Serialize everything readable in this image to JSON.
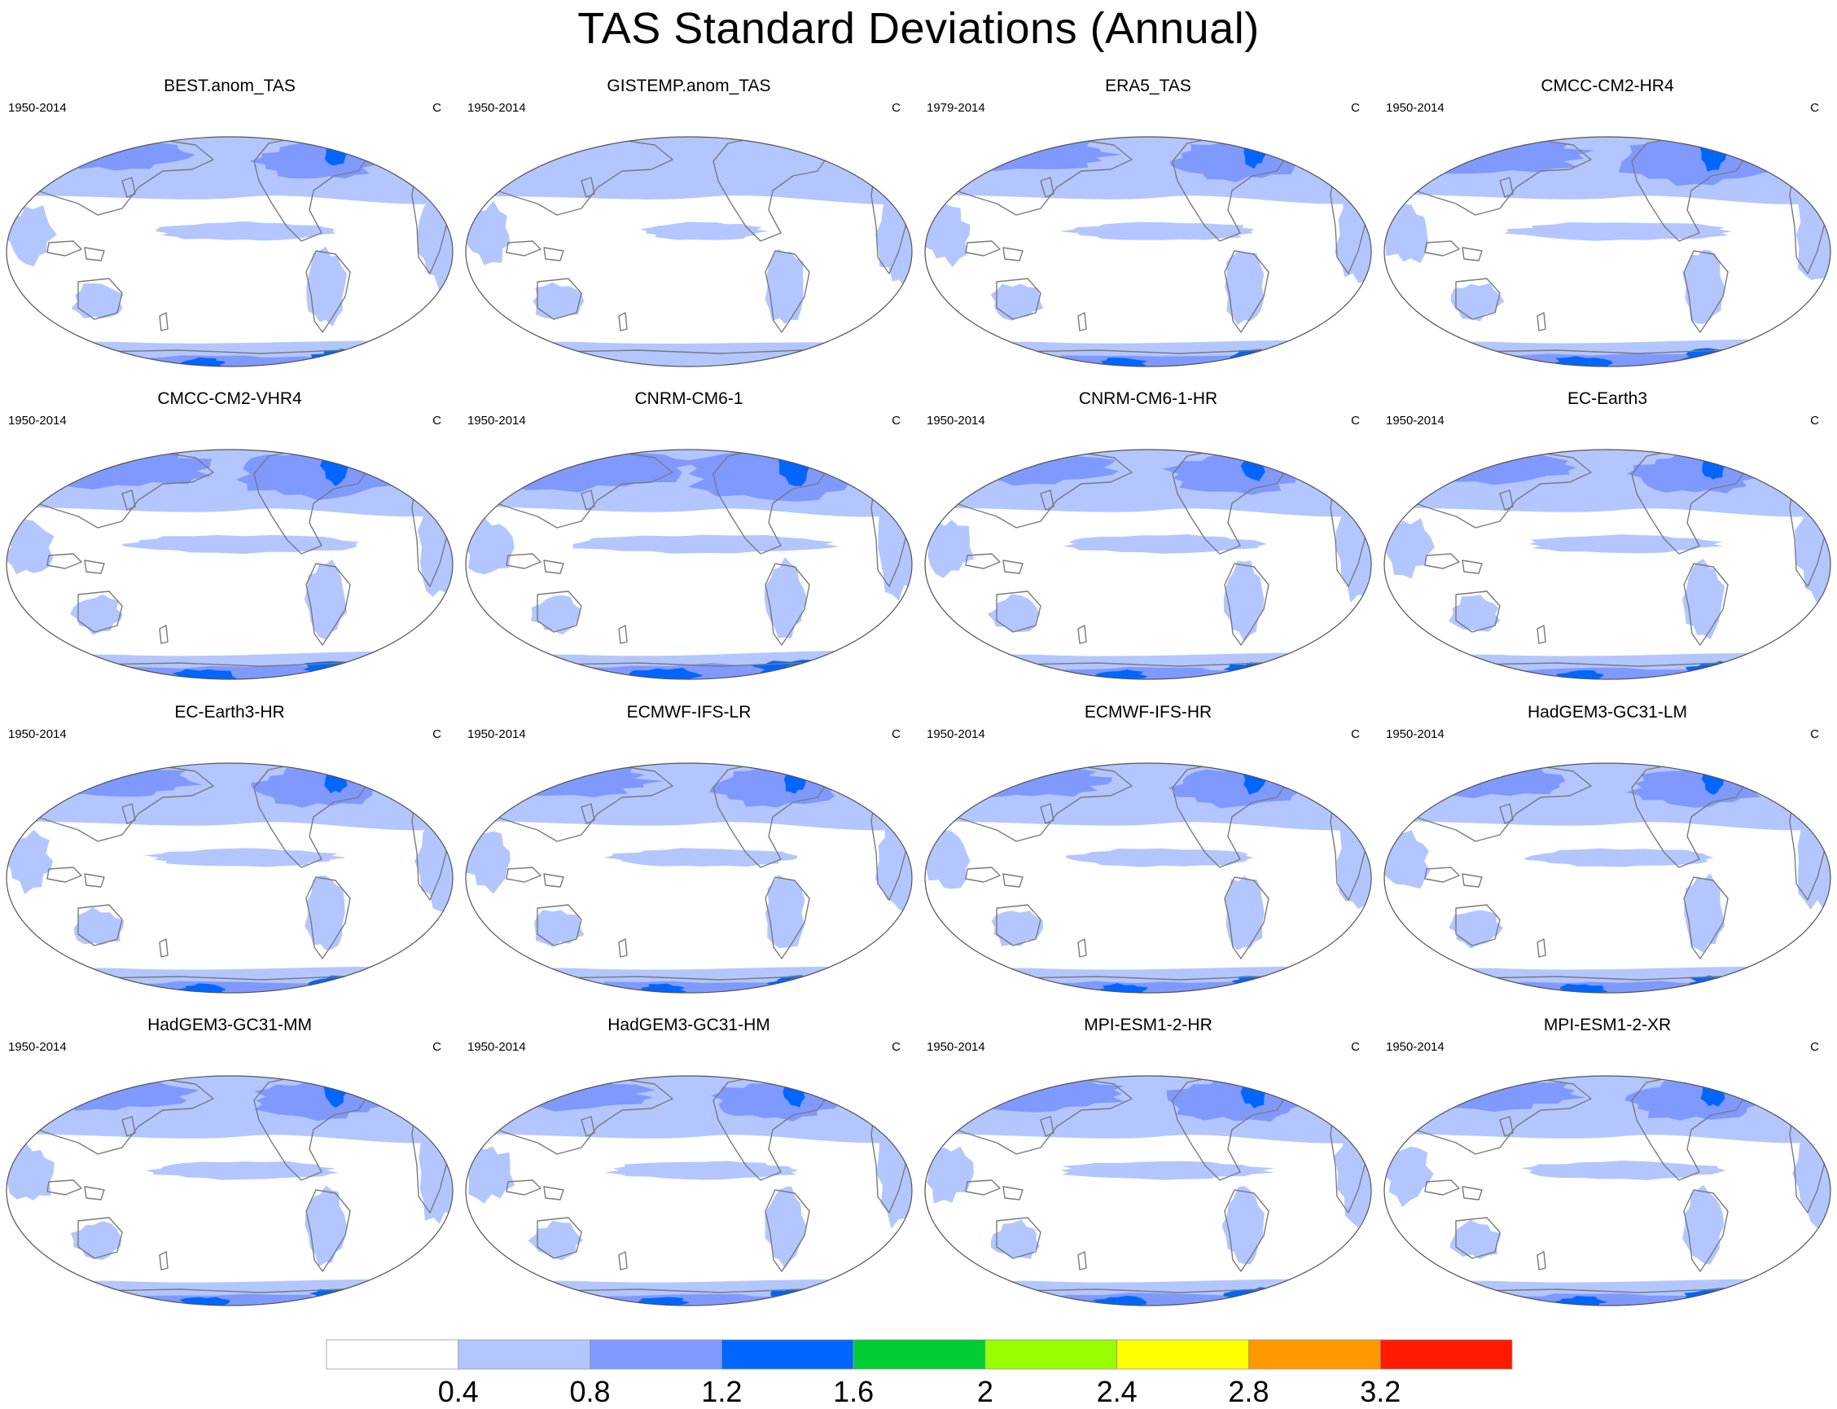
{
  "title": "TAS Standard Deviations (Annual)",
  "chart_data": {
    "type": "map",
    "grid": {
      "rows": 4,
      "cols": 4
    },
    "projection": "Robinson (Pacific-centered)",
    "units": "C",
    "panels": [
      {
        "name": "BEST.anom_TAS",
        "period": "1950-2014",
        "units": "C",
        "strength": 0.9
      },
      {
        "name": "GISTEMP.anom_TAS",
        "period": "1950-2014",
        "units": "C",
        "strength": 0.6
      },
      {
        "name": "ERA5_TAS",
        "period": "1979-2014",
        "units": "C",
        "strength": 0.95
      },
      {
        "name": "CMCC-CM2-HR4",
        "period": "1950-2014",
        "units": "C",
        "strength": 1.15
      },
      {
        "name": "CMCC-CM2-VHR4",
        "period": "1950-2014",
        "units": "C",
        "strength": 1.2
      },
      {
        "name": "CNRM-CM6-1",
        "period": "1950-2014",
        "units": "C",
        "strength": 1.35
      },
      {
        "name": "CNRM-CM6-1-HR",
        "period": "1950-2014",
        "units": "C",
        "strength": 1.0
      },
      {
        "name": "EC-Earth3",
        "period": "1950-2014",
        "units": "C",
        "strength": 0.95
      },
      {
        "name": "EC-Earth3-HR",
        "period": "1950-2014",
        "units": "C",
        "strength": 0.95
      },
      {
        "name": "ECMWF-IFS-LR",
        "period": "1950-2014",
        "units": "C",
        "strength": 0.95
      },
      {
        "name": "ECMWF-IFS-HR",
        "period": "1950-2014",
        "units": "C",
        "strength": 0.95
      },
      {
        "name": "HadGEM3-GC31-LM",
        "period": "1950-2014",
        "units": "C",
        "strength": 0.95
      },
      {
        "name": "HadGEM3-GC31-MM",
        "period": "1950-2014",
        "units": "C",
        "strength": 0.95
      },
      {
        "name": "HadGEM3-GC31-HM",
        "period": "1950-2014",
        "units": "C",
        "strength": 0.95
      },
      {
        "name": "MPI-ESM1-2-HR",
        "period": "1950-2014",
        "units": "C",
        "strength": 1.05
      },
      {
        "name": "MPI-ESM1-2-XR",
        "period": "1950-2014",
        "units": "C",
        "strength": 1.0
      }
    ],
    "colorbar": {
      "levels": [
        "0.4",
        "0.8",
        "1.2",
        "1.6",
        "2",
        "2.4",
        "2.8",
        "3.2"
      ],
      "colors": [
        "#ffffff",
        "#b3c6ff",
        "#8099ff",
        "#0066ff",
        "#00cc33",
        "#99ff00",
        "#ffff00",
        "#ff9900",
        "#ff1a00"
      ]
    }
  }
}
